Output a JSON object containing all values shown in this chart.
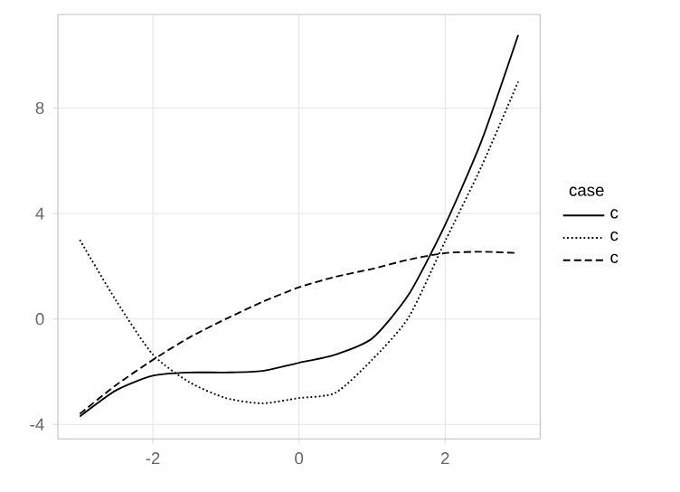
{
  "chart_data": {
    "type": "line",
    "legend_title": "case",
    "legend": "right",
    "grid": true,
    "marker": "none",
    "xlim": [
      -3.3,
      3.3
    ],
    "ylim": [
      -4.55,
      11.55
    ],
    "xticks": [
      -2,
      0,
      2
    ],
    "yticks": [
      -4,
      0,
      4,
      8
    ],
    "series": [
      {
        "name": "c",
        "color": "#000000",
        "line_style": "solid",
        "x": [
          -3,
          -2.5,
          -2,
          -1.5,
          -1,
          -0.5,
          0,
          0.5,
          1,
          1.5,
          2,
          2.5,
          3
        ],
        "values": [
          -3.7,
          -2.7,
          -2.15,
          -2.03,
          -2.03,
          -1.97,
          -1.66,
          -1.35,
          -0.74,
          0.92,
          3.57,
          6.77,
          10.77
        ]
      },
      {
        "name": "c",
        "color": "#000000",
        "line_style": "dotted",
        "x": [
          -3,
          -2.5,
          -2,
          -1.5,
          -1,
          -0.5,
          0,
          0.5,
          1,
          1.5,
          2,
          2.5,
          3
        ],
        "values": [
          3.0,
          0.68,
          -1.35,
          -2.4,
          -3.0,
          -3.2,
          -3.0,
          -2.8,
          -1.55,
          0.06,
          2.95,
          5.8,
          9.0
        ]
      },
      {
        "name": "c",
        "color": "#000000",
        "line_style": "dashed",
        "x": [
          -3,
          -2.5,
          -2,
          -1.5,
          -1,
          -0.5,
          0,
          0.5,
          1,
          1.5,
          2,
          2.5,
          3
        ],
        "values": [
          -3.6,
          -2.5,
          -1.55,
          -0.7,
          0,
          0.65,
          1.2,
          1.6,
          1.9,
          2.25,
          2.5,
          2.55,
          2.5
        ]
      }
    ]
  }
}
